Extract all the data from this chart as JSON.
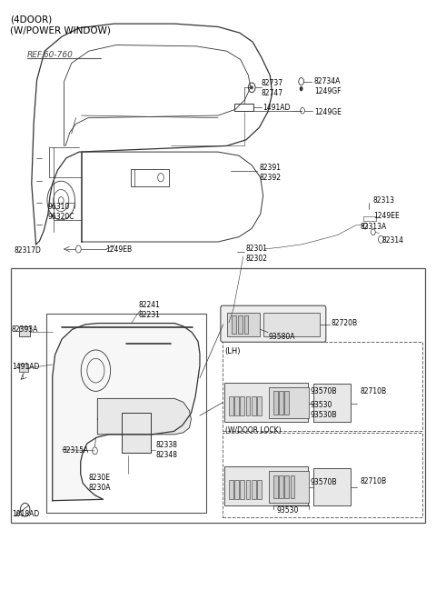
{
  "title_line1": "(4DOOR)",
  "title_line2": "(W/POWER WINDOW)",
  "ref_label": "REF.60-760",
  "bg_color": "#ffffff",
  "line_color": "#333333",
  "text_color": "#000000"
}
